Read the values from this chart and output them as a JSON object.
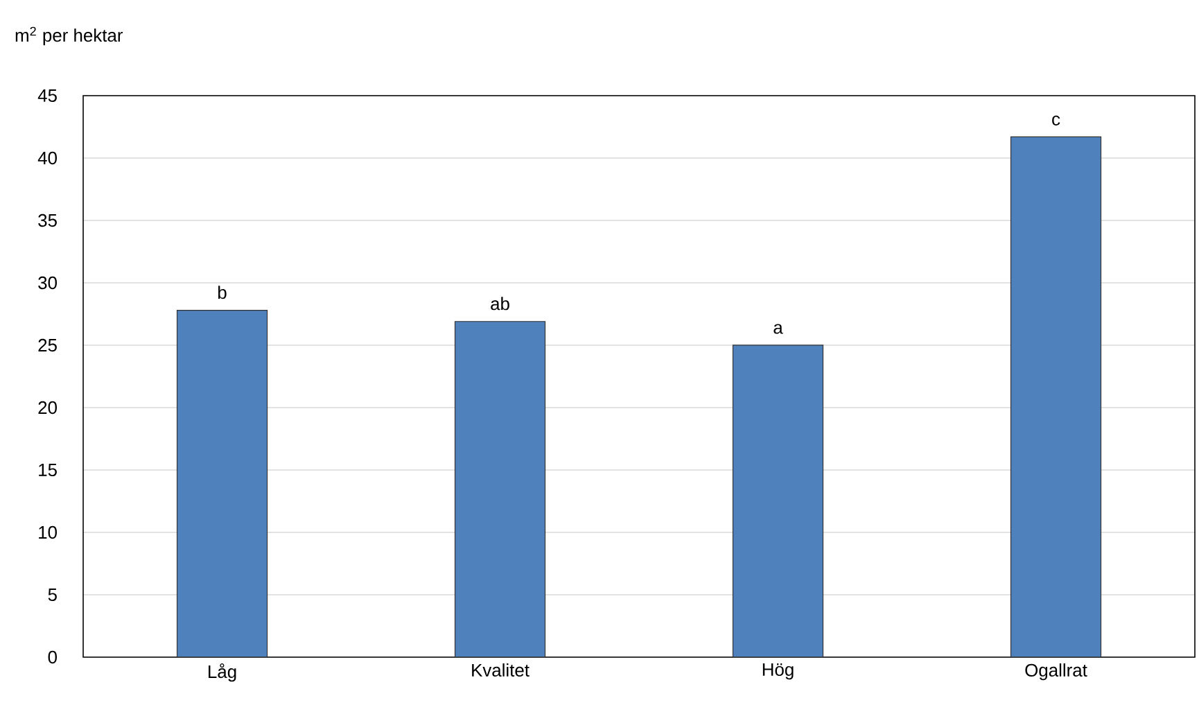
{
  "chart_data": {
    "type": "bar",
    "ylabel": "m$^{2}$ per hektar",
    "categories": [
      "Låg",
      "Kvalitet",
      "Hög",
      "Ogallrat"
    ],
    "values": [
      27.8,
      26.9,
      25.0,
      41.7
    ],
    "color": "#4f81bd",
    "ylim": [
      0,
      45
    ],
    "yticks": [
      0,
      5,
      10,
      15,
      20,
      25,
      30,
      35,
      40,
      45
    ],
    "grid": "y",
    "annotations": [
      {
        "text": "b",
        "x": "Låg",
        "y": 27.8
      },
      {
        "text": "ab",
        "x": "Kvalitet",
        "y": 26.9
      },
      {
        "text": "a",
        "x": "Hög",
        "y": 25.0
      },
      {
        "text": "c",
        "x": "Ogallrat",
        "y": 41.7
      }
    ]
  }
}
